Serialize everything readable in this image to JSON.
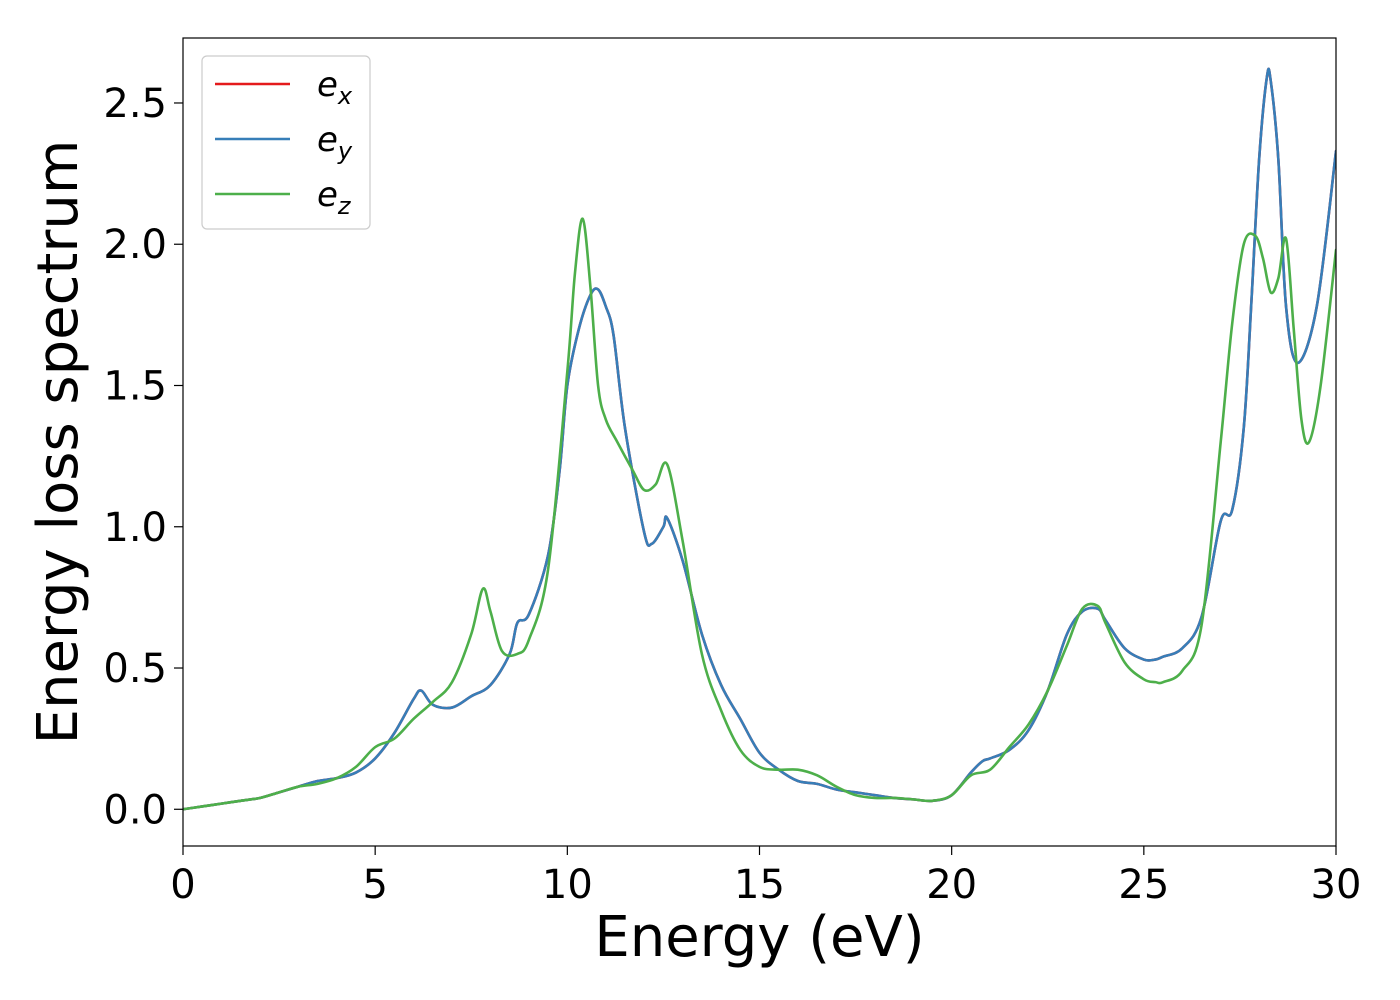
{
  "chart_data": {
    "type": "line",
    "title": "",
    "xlabel": "Energy (eV)",
    "ylabel": "Energy loss spectrum",
    "xlim": [
      0,
      30
    ],
    "ylim": [
      -0.13,
      2.73
    ],
    "xticks": [
      0,
      5,
      10,
      15,
      20,
      25,
      30
    ],
    "yticks": [
      0.0,
      0.5,
      1.0,
      1.5,
      2.0,
      2.5
    ],
    "xtick_labels": [
      "0",
      "5",
      "10",
      "15",
      "20",
      "25",
      "30"
    ],
    "ytick_labels": [
      "0.0",
      "0.5",
      "1.0",
      "1.5",
      "2.0",
      "2.5"
    ],
    "grid": false,
    "legend_position": "top-left",
    "series": [
      {
        "name": "e_x",
        "label_base": "e",
        "label_sub": "x",
        "color": "#e41a1c",
        "x": [
          0,
          0.5,
          1,
          1.5,
          2,
          2.5,
          3,
          3.5,
          4,
          4.5,
          5,
          5.5,
          6,
          6.2,
          6.5,
          7,
          7.5,
          8,
          8.5,
          8.7,
          9,
          9.5,
          9.8,
          10,
          10.3,
          10.6,
          10.8,
          11,
          11.2,
          11.5,
          12,
          12.2,
          12.5,
          12.6,
          13,
          13.5,
          14,
          14.5,
          15,
          15.5,
          16,
          16.5,
          17,
          17.5,
          18,
          18.5,
          19,
          19.5,
          20,
          20.5,
          20.8,
          21,
          21.5,
          22,
          22.5,
          23,
          23.4,
          23.8,
          24,
          24.5,
          25,
          25.3,
          25.5,
          26,
          26.5,
          27,
          27.3,
          27.6,
          27.8,
          28,
          28.2,
          28.3,
          28.5,
          28.7,
          29,
          29.5,
          30
        ],
        "y": [
          0,
          0.01,
          0.02,
          0.03,
          0.04,
          0.06,
          0.08,
          0.1,
          0.11,
          0.13,
          0.18,
          0.27,
          0.39,
          0.42,
          0.37,
          0.36,
          0.4,
          0.44,
          0.55,
          0.66,
          0.69,
          0.9,
          1.2,
          1.5,
          1.7,
          1.82,
          1.84,
          1.78,
          1.68,
          1.35,
          0.98,
          0.94,
          1.0,
          1.03,
          0.88,
          0.62,
          0.44,
          0.32,
          0.2,
          0.14,
          0.1,
          0.09,
          0.07,
          0.06,
          0.05,
          0.04,
          0.035,
          0.03,
          0.05,
          0.13,
          0.17,
          0.18,
          0.21,
          0.28,
          0.42,
          0.62,
          0.7,
          0.71,
          0.67,
          0.57,
          0.53,
          0.53,
          0.54,
          0.57,
          0.68,
          1.02,
          1.06,
          1.35,
          1.8,
          2.3,
          2.59,
          2.58,
          2.3,
          1.78,
          1.58,
          1.78,
          2.33
        ]
      },
      {
        "name": "e_y",
        "label_base": "e",
        "label_sub": "y",
        "color": "#377eb8",
        "x": [
          0,
          0.5,
          1,
          1.5,
          2,
          2.5,
          3,
          3.5,
          4,
          4.5,
          5,
          5.5,
          6,
          6.2,
          6.5,
          7,
          7.5,
          8,
          8.5,
          8.7,
          9,
          9.5,
          9.8,
          10,
          10.3,
          10.6,
          10.8,
          11,
          11.2,
          11.5,
          12,
          12.2,
          12.5,
          12.6,
          13,
          13.5,
          14,
          14.5,
          15,
          15.5,
          16,
          16.5,
          17,
          17.5,
          18,
          18.5,
          19,
          19.5,
          20,
          20.5,
          20.8,
          21,
          21.5,
          22,
          22.5,
          23,
          23.4,
          23.8,
          24,
          24.5,
          25,
          25.3,
          25.5,
          26,
          26.5,
          27,
          27.3,
          27.6,
          27.8,
          28,
          28.2,
          28.3,
          28.5,
          28.7,
          29,
          29.5,
          30
        ],
        "y": [
          0,
          0.01,
          0.02,
          0.03,
          0.04,
          0.06,
          0.08,
          0.1,
          0.11,
          0.13,
          0.18,
          0.27,
          0.39,
          0.42,
          0.37,
          0.36,
          0.4,
          0.44,
          0.55,
          0.66,
          0.69,
          0.9,
          1.2,
          1.5,
          1.7,
          1.82,
          1.84,
          1.78,
          1.68,
          1.35,
          0.98,
          0.94,
          1.0,
          1.03,
          0.88,
          0.62,
          0.44,
          0.32,
          0.2,
          0.14,
          0.1,
          0.09,
          0.07,
          0.06,
          0.05,
          0.04,
          0.035,
          0.03,
          0.05,
          0.13,
          0.17,
          0.18,
          0.21,
          0.28,
          0.42,
          0.62,
          0.7,
          0.71,
          0.67,
          0.57,
          0.53,
          0.53,
          0.54,
          0.57,
          0.68,
          1.02,
          1.06,
          1.35,
          1.8,
          2.3,
          2.59,
          2.58,
          2.3,
          1.78,
          1.58,
          1.78,
          2.33
        ]
      },
      {
        "name": "e_z",
        "label_base": "e",
        "label_sub": "z",
        "color": "#4daf4a",
        "x": [
          0,
          0.5,
          1,
          1.5,
          2,
          2.5,
          3,
          3.5,
          4,
          4.5,
          5,
          5.5,
          6,
          6.5,
          7,
          7.5,
          7.8,
          8,
          8.3,
          8.7,
          9,
          9.5,
          10,
          10.2,
          10.4,
          10.6,
          10.8,
          11,
          11.3,
          11.7,
          12,
          12.3,
          12.6,
          13,
          13.5,
          14,
          14.5,
          15,
          15.5,
          16,
          16.5,
          17,
          17.5,
          18,
          18.5,
          19,
          19.5,
          20,
          20.5,
          21,
          21.5,
          22,
          22.5,
          23,
          23.4,
          23.8,
          24,
          24.5,
          25,
          25.3,
          25.5,
          26,
          26.5,
          27,
          27.3,
          27.6,
          27.9,
          28.1,
          28.3,
          28.5,
          28.7,
          28.9,
          29.1,
          29.3,
          29.6,
          30
        ],
        "y": [
          0,
          0.01,
          0.02,
          0.03,
          0.04,
          0.06,
          0.08,
          0.09,
          0.11,
          0.15,
          0.22,
          0.25,
          0.32,
          0.38,
          0.45,
          0.62,
          0.78,
          0.7,
          0.56,
          0.55,
          0.6,
          0.85,
          1.55,
          1.9,
          2.09,
          1.85,
          1.5,
          1.38,
          1.3,
          1.2,
          1.13,
          1.15,
          1.22,
          0.95,
          0.55,
          0.35,
          0.21,
          0.15,
          0.14,
          0.14,
          0.12,
          0.08,
          0.05,
          0.04,
          0.04,
          0.035,
          0.03,
          0.05,
          0.12,
          0.14,
          0.22,
          0.3,
          0.42,
          0.58,
          0.71,
          0.72,
          0.66,
          0.52,
          0.46,
          0.45,
          0.45,
          0.49,
          0.65,
          1.3,
          1.72,
          2.0,
          2.03,
          1.95,
          1.83,
          1.88,
          2.02,
          1.7,
          1.38,
          1.3,
          1.5,
          1.98
        ]
      }
    ]
  }
}
